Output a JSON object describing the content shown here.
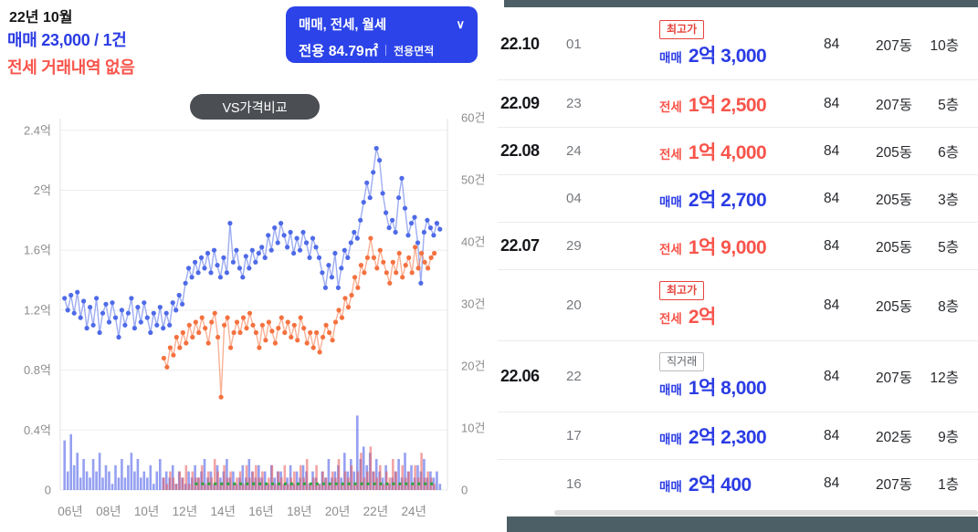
{
  "header": {
    "month_label": "22년 10월",
    "sale_summary": "매매 23,000 / 1건",
    "jeonse_summary": "전세 거래내역 없음",
    "filter": {
      "line1": "매매, 전세, 월세",
      "chevron_icon": "∨",
      "area_text": "전용 84.79㎡",
      "area_unit_label": "전용면적"
    },
    "vs_badge_label": "VS가격비교"
  },
  "colors": {
    "accent_blue": "#2b3ce4",
    "accent_red": "#f8544b",
    "filter_bg": "#2b43e8",
    "vs_badge_bg": "#4b4e53",
    "chart_sale_line": "#4e6ae8",
    "chart_jeonse_line": "#f4713f",
    "sale_volume_bar": "rgba(79,96,232,0.6)",
    "jeonse_volume_bar": "rgba(233,90,90,0.55)",
    "wolse_dot": "#2da23c",
    "dark_bar": "#4d5f66"
  },
  "chart": {
    "type": "line+bar",
    "y_left": [
      {
        "label": "2.4억",
        "value": 2.4
      },
      {
        "label": "2억",
        "value": 2
      },
      {
        "label": "1.6억",
        "value": 1.6
      },
      {
        "label": "1.2억",
        "value": 1.2
      },
      {
        "label": "0.8억",
        "value": 0.8
      },
      {
        "label": "0.4억",
        "value": 0.4
      },
      {
        "label": "0",
        "value": 0
      }
    ],
    "y_right": [
      {
        "label": "60건",
        "value": 60
      },
      {
        "label": "50건",
        "value": 50
      },
      {
        "label": "40건",
        "value": 40
      },
      {
        "label": "30건",
        "value": 30
      },
      {
        "label": "20건",
        "value": 20
      },
      {
        "label": "10건",
        "value": 10
      },
      {
        "label": "0",
        "value": 0
      }
    ],
    "x_ticks": [
      {
        "label": "06년",
        "year": 2006
      },
      {
        "label": "08년",
        "year": 2008
      },
      {
        "label": "10년",
        "year": 2010
      },
      {
        "label": "12년",
        "year": 2012
      },
      {
        "label": "14년",
        "year": 2014
      },
      {
        "label": "16년",
        "year": 2016
      },
      {
        "label": "18년",
        "year": 2018
      },
      {
        "label": "20년",
        "year": 2020
      },
      {
        "label": "22년",
        "year": 2022
      },
      {
        "label": "24년",
        "year": 2024
      }
    ],
    "series": [
      {
        "name": "sale-volume-bars",
        "type": "bar",
        "axis": "count",
        "color": "rgba(79,96,232,0.6)",
        "start": 2005.7,
        "step": 0.1667,
        "values": [
          8,
          3,
          9,
          4,
          6,
          2,
          5,
          3,
          2,
          5,
          3,
          6,
          2,
          4,
          3,
          1,
          4,
          2,
          5,
          2,
          4,
          6,
          3,
          5,
          2,
          3,
          2,
          4,
          1,
          3,
          5,
          2,
          3,
          2,
          4,
          1,
          3,
          2,
          1,
          3,
          2,
          4,
          2,
          3,
          5,
          2,
          3,
          1,
          4,
          2,
          3,
          5,
          2,
          3,
          1,
          2,
          4,
          2,
          5,
          3,
          2,
          4,
          2,
          3,
          1,
          4,
          2,
          3,
          3,
          1,
          2,
          4,
          1,
          3,
          2,
          4,
          3,
          1,
          3,
          2,
          1,
          3,
          2,
          5,
          2,
          3,
          4,
          2,
          6,
          3,
          5,
          3,
          12,
          5,
          7,
          4,
          6,
          3,
          5,
          3,
          2,
          4,
          1,
          2,
          3,
          5,
          2,
          6,
          3,
          4,
          2,
          4,
          3,
          5,
          2,
          3,
          2,
          3,
          1
        ]
      },
      {
        "name": "jeonse-volume-bars",
        "type": "bar",
        "axis": "count",
        "color": "rgba(233,90,90,0.55)",
        "start": 2010.9,
        "step": 0.1667,
        "values": [
          2,
          1,
          3,
          2,
          1,
          3,
          2,
          4,
          1,
          3,
          2,
          2,
          4,
          1,
          3,
          2,
          5,
          3,
          1,
          4,
          2,
          3,
          1,
          2,
          3,
          1,
          4,
          2,
          3,
          4,
          2,
          3,
          1,
          2,
          4,
          1,
          3,
          2,
          4,
          1,
          2,
          3,
          1,
          4,
          2,
          5,
          1,
          2,
          4,
          1,
          3,
          2,
          1,
          3,
          2,
          5,
          1,
          3,
          2,
          4,
          1,
          3,
          6,
          2,
          3,
          7,
          3,
          2,
          4,
          1,
          3,
          2,
          5,
          3,
          1,
          4,
          2,
          3,
          1,
          4,
          2,
          6,
          2,
          3,
          2,
          1
        ]
      },
      {
        "name": "wolse-volume-dots",
        "type": "dot",
        "axis": "count",
        "color": "#2da23c",
        "start": 2012.6,
        "step": 0.3333,
        "values": [
          1,
          1,
          1,
          1,
          1,
          1,
          1,
          1,
          1,
          1,
          1,
          1,
          1,
          1,
          1,
          1,
          1,
          1,
          1,
          1,
          1,
          1,
          1,
          1,
          1,
          1,
          1,
          1,
          1,
          1,
          1,
          1,
          1,
          1,
          1,
          1,
          1,
          1
        ]
      },
      {
        "name": "sale-price-line",
        "type": "line",
        "axis": "price",
        "color": "#4e6ae8",
        "start": 2005.7,
        "step": 0.1667,
        "values": [
          1.28,
          1.2,
          1.3,
          1.18,
          1.32,
          1.15,
          1.26,
          1.08,
          1.22,
          1.1,
          1.28,
          1.05,
          1.18,
          1.24,
          1.12,
          1.25,
          1.15,
          1.02,
          1.2,
          1.1,
          1.18,
          1.28,
          1.08,
          1.22,
          1.12,
          1.25,
          1.15,
          1.05,
          1.18,
          1.1,
          1.22,
          1.08,
          1.18,
          1.1,
          1.25,
          1.2,
          1.3,
          1.24,
          1.38,
          1.48,
          1.42,
          1.52,
          1.45,
          1.55,
          1.48,
          1.58,
          1.45,
          1.6,
          1.5,
          1.42,
          1.55,
          1.45,
          1.78,
          1.52,
          1.6,
          1.48,
          1.42,
          1.56,
          1.48,
          1.6,
          1.52,
          1.58,
          1.62,
          1.55,
          1.7,
          1.6,
          1.75,
          1.65,
          1.78,
          1.7,
          1.62,
          1.72,
          1.58,
          1.68,
          1.6,
          1.72,
          1.65,
          1.55,
          1.68,
          1.62,
          1.55,
          1.45,
          1.35,
          1.5,
          1.42,
          1.58,
          1.35,
          1.48,
          1.6,
          1.55,
          1.65,
          1.72,
          1.68,
          1.8,
          1.92,
          2.05,
          1.95,
          2.12,
          2.28,
          2.2,
          1.98,
          1.85,
          1.75,
          1.8,
          1.72,
          1.95,
          2.08,
          1.88,
          1.7,
          1.78,
          1.82,
          1.65,
          1.38,
          1.72,
          1.8,
          1.75,
          1.7,
          1.78,
          1.74
        ]
      },
      {
        "name": "jeonse-price-line",
        "type": "line",
        "axis": "price",
        "color": "#f4713f",
        "start": 2010.9,
        "step": 0.1667,
        "values": [
          0.88,
          0.82,
          0.95,
          0.9,
          1.02,
          0.95,
          1.05,
          0.98,
          1.1,
          1.02,
          1.12,
          1.05,
          1.15,
          1.08,
          0.98,
          1.12,
          1.18,
          1.02,
          0.62,
          1.1,
          1.15,
          0.95,
          1.05,
          1.12,
          1.05,
          1.15,
          1.08,
          1.18,
          1.1,
          1.05,
          0.95,
          1.1,
          1.0,
          1.12,
          1.06,
          0.98,
          1.08,
          1.15,
          1.05,
          1.12,
          1.02,
          1.1,
          1.0,
          1.15,
          1.08,
          0.98,
          1.05,
          0.95,
          1.05,
          0.92,
          1.02,
          1.1,
          1.05,
          1.0,
          1.12,
          1.2,
          1.15,
          1.28,
          1.22,
          1.3,
          1.42,
          1.35,
          1.5,
          1.45,
          1.55,
          1.68,
          1.55,
          1.48,
          1.6,
          1.52,
          1.45,
          1.38,
          1.52,
          1.45,
          1.58,
          1.42,
          1.5,
          1.55,
          1.45,
          1.62,
          1.48,
          1.58,
          1.52,
          1.48,
          1.55,
          1.58
        ]
      }
    ]
  },
  "table": {
    "rows": [
      {
        "date": "22.10",
        "day": "01",
        "badge": "최고가",
        "badge_kind": "max",
        "kind": "sale",
        "type": "매매",
        "price": "2억 3,000",
        "area": "84",
        "dong": "207동",
        "floor": "10층"
      },
      {
        "date": "22.09",
        "day": "23",
        "kind": "jeonse",
        "type": "전세",
        "price": "1억 2,500",
        "area": "84",
        "dong": "207동",
        "floor": "5층"
      },
      {
        "date": "22.08",
        "day": "24",
        "kind": "jeonse",
        "type": "전세",
        "price": "1억 4,000",
        "area": "84",
        "dong": "205동",
        "floor": "6층"
      },
      {
        "date": "",
        "day": "04",
        "kind": "sale",
        "type": "매매",
        "price": "2억 2,700",
        "area": "84",
        "dong": "205동",
        "floor": "3층"
      },
      {
        "date": "22.07",
        "day": "29",
        "kind": "jeonse",
        "type": "전세",
        "price": "1억 9,000",
        "area": "84",
        "dong": "205동",
        "floor": "5층"
      },
      {
        "date": "",
        "day": "20",
        "badge": "최고가",
        "badge_kind": "max",
        "kind": "jeonse",
        "type": "전세",
        "price": "2억",
        "area": "84",
        "dong": "205동",
        "floor": "8층"
      },
      {
        "date": "22.06",
        "day": "22",
        "badge": "직거래",
        "badge_kind": "direct",
        "kind": "sale",
        "type": "매매",
        "price": "1억 8,000",
        "area": "84",
        "dong": "207동",
        "floor": "12층"
      },
      {
        "date": "",
        "day": "17",
        "kind": "sale",
        "type": "매매",
        "price": "2억 2,300",
        "area": "84",
        "dong": "202동",
        "floor": "9층"
      },
      {
        "date": "",
        "day": "16",
        "kind": "sale",
        "type": "매매",
        "price": "2억 400",
        "area": "84",
        "dong": "207동",
        "floor": "1층"
      }
    ]
  }
}
